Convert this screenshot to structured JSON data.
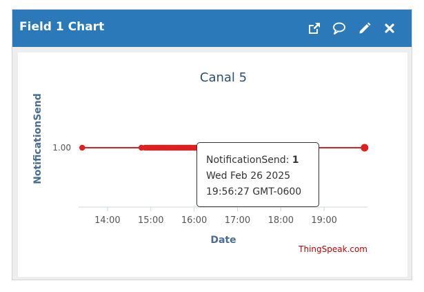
{
  "header": {
    "title": "Field 1 Chart",
    "icons": [
      "external-link-icon",
      "comment-icon",
      "pencil-icon",
      "close-icon"
    ]
  },
  "colors": {
    "header": "#2b79b8",
    "series": "#e02020",
    "title": "#2c4f6e",
    "axis_label": "#4a6d94",
    "credit": "#c00000"
  },
  "chart_data": {
    "type": "line",
    "title": "Canal 5",
    "xlabel": "Date",
    "ylabel": "NotificationSend",
    "x_ticks": [
      "14:00",
      "15:00",
      "16:00",
      "17:00",
      "18:00",
      "19:00"
    ],
    "y_ticks": [
      "1.00"
    ],
    "xlim": [
      "13:20",
      "20:00"
    ],
    "series": [
      {
        "x": [
          "13:25",
          "14:47",
          "14:52",
          "14:55",
          "14:58",
          "15:00",
          "15:02",
          "15:04",
          "15:06",
          "15:08",
          "15:10",
          "15:12",
          "15:14",
          "15:16",
          "15:18",
          "15:20",
          "15:22",
          "15:24",
          "15:26",
          "15:28",
          "15:30",
          "15:32",
          "15:34",
          "15:36",
          "15:38",
          "15:40",
          "15:42",
          "15:44",
          "15:46",
          "15:48",
          "15:50",
          "15:52",
          "15:54",
          "15:56",
          "15:58",
          "16:00",
          "16:02",
          "16:04",
          "16:06",
          "16:08",
          "16:10",
          "16:12",
          "16:14",
          "16:16",
          "16:18",
          "16:20",
          "16:22",
          "16:24",
          "16:26",
          "16:28",
          "16:30",
          "16:33",
          "16:36",
          "16:39",
          "16:42",
          "16:45",
          "16:50",
          "16:55",
          "17:00",
          "17:05",
          "17:12",
          "17:30",
          "17:50",
          "19:56"
        ],
        "y": [
          1,
          1,
          1,
          1,
          1,
          1,
          1,
          1,
          1,
          1,
          1,
          1,
          1,
          1,
          1,
          1,
          1,
          1,
          1,
          1,
          1,
          1,
          1,
          1,
          1,
          1,
          1,
          1,
          1,
          1,
          1,
          1,
          1,
          1,
          1,
          1,
          1,
          1,
          1,
          1,
          1,
          1,
          1,
          1,
          1,
          1,
          1,
          1,
          1,
          1,
          1,
          1,
          1,
          1,
          1,
          1,
          1,
          1,
          1,
          1,
          1,
          1,
          1,
          1
        ]
      }
    ],
    "tooltip": {
      "series_label": "NotificationSend: ",
      "value": "1",
      "date": "Wed Feb 26 2025",
      "time": "19:56:27 GMT-0600"
    },
    "credit": "ThingSpeak.com",
    "legend": "none",
    "grid": false
  }
}
